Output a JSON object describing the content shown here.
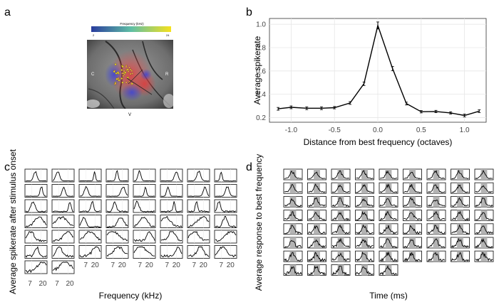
{
  "panels": {
    "a": {
      "letter": "a"
    },
    "b": {
      "letter": "b"
    },
    "c": {
      "letter": "c"
    },
    "d": {
      "letter": "d"
    }
  },
  "panel_a": {
    "colorbar_title": "Frequency (kHz)",
    "colorbar_min": "2",
    "colorbar_max": "24",
    "orientation": {
      "left": "C",
      "right": "R",
      "bottom": "V"
    },
    "colors": {
      "low": "#2a3d9e",
      "mid": "#5fbfa5",
      "high": "#f6e11d"
    }
  },
  "panel_c": {
    "ylabel": "Average spikerate after stimulus onset",
    "xlabel": "Frequency (kHz)",
    "tick_labels": [
      "7",
      "20"
    ],
    "rows": [
      8,
      8,
      8,
      8,
      8,
      8,
      2
    ]
  },
  "panel_d": {
    "ylabel": "Average response to best frequency",
    "xlabel": "Time (ms)",
    "rows": [
      9,
      9,
      9,
      9,
      9,
      9,
      9,
      5
    ]
  },
  "chart_data": {
    "type": "line",
    "title": "",
    "xlabel": "Distance from best frequency (octaves)",
    "ylabel": "Average spikerate",
    "xlim": [
      -1.25,
      1.25
    ],
    "ylim": [
      0.16,
      1.05
    ],
    "x_ticks": [
      -1.0,
      -0.5,
      0.0,
      0.5,
      1.0
    ],
    "x_tick_labels": [
      "-1.0",
      "-0.5",
      "0.0",
      "0.5",
      "1.0"
    ],
    "y_ticks": [
      0.2,
      0.4,
      0.6,
      0.8,
      1.0
    ],
    "y_tick_labels": [
      "0.2",
      "0.4",
      "0.6",
      "0.8",
      "1.0"
    ],
    "grid": true,
    "series": [
      {
        "x": [
          -1.15,
          -1.0,
          -0.82,
          -0.65,
          -0.5,
          -0.32,
          -0.16,
          0.0,
          0.17,
          0.33,
          0.5,
          0.67,
          0.84,
          1.0,
          1.17
        ],
        "y": [
          0.275,
          0.288,
          0.28,
          0.28,
          0.285,
          0.325,
          0.49,
          0.99,
          0.62,
          0.32,
          0.25,
          0.252,
          0.24,
          0.218,
          0.255
        ],
        "err": [
          0.012,
          0.012,
          0.012,
          0.012,
          0.01,
          0.012,
          0.015,
          0.03,
          0.018,
          0.012,
          0.01,
          0.01,
          0.01,
          0.012,
          0.012
        ]
      }
    ]
  }
}
